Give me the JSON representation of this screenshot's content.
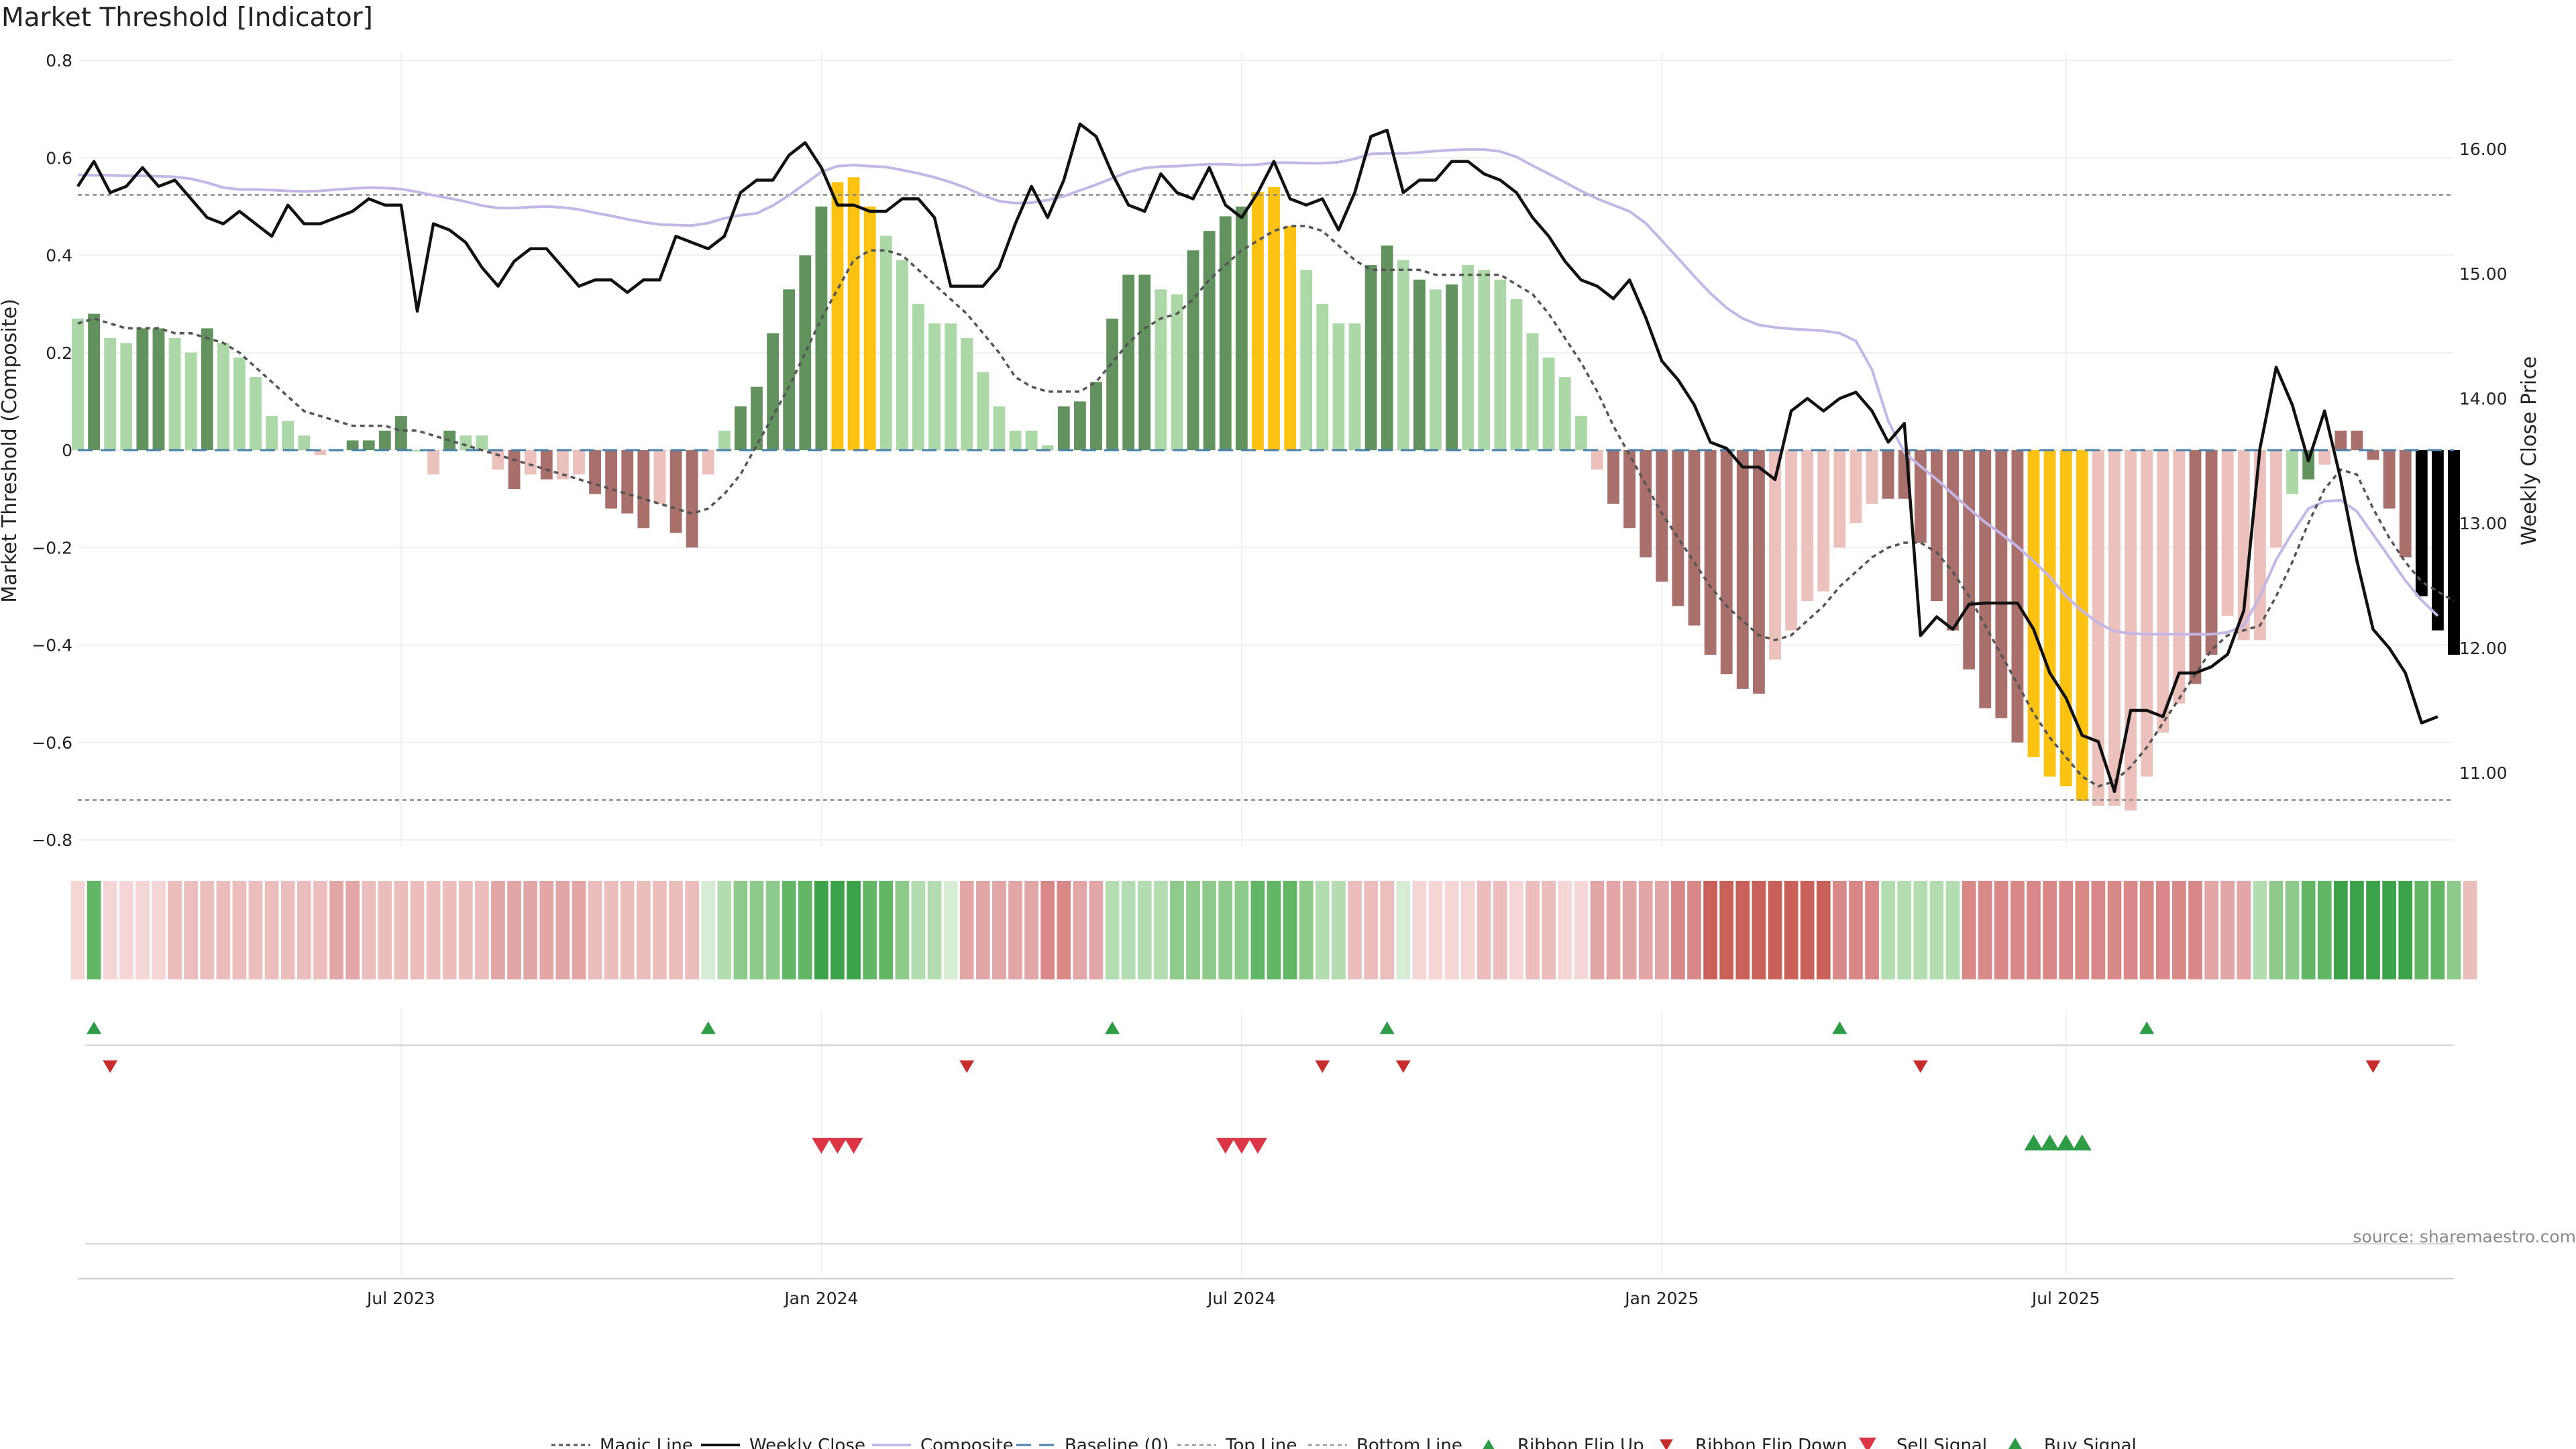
{
  "chart_data": {
    "type": "bar",
    "title": "Market Threshold [Indicator]",
    "ylabel": "Market Threshold (Composite)",
    "y2label": "Weekly Close Price",
    "ylim": [
      -0.8,
      0.8
    ],
    "y2lim": [
      10.5,
      16.5
    ],
    "yticks": [
      "0.8",
      "0.6",
      "0.4",
      "0.2",
      "0",
      "−0.2",
      "−0.4",
      "−0.6",
      "−0.8"
    ],
    "y2ticks": [
      "16.00",
      "15.00",
      "14.00",
      "13.00",
      "12.00",
      "11.00"
    ],
    "xticks": [
      "Jul 2023",
      "Jan 2024",
      "Jul 2024",
      "Jan 2025",
      "Jul 2025"
    ],
    "xtick_weeks": [
      20,
      46,
      72,
      98,
      123
    ],
    "source": "source: sharemaestro.com",
    "top_line": 0.524,
    "bottom_line": -0.718,
    "baseline": 0,
    "composite": [
      0.27,
      0.28,
      0.23,
      0.22,
      0.25,
      0.25,
      0.23,
      0.2,
      0.25,
      0.22,
      0.19,
      0.15,
      0.07,
      0.06,
      0.03,
      -0.01,
      0.0,
      0.02,
      0.02,
      0.04,
      0.07,
      0.0,
      -0.05,
      0.04,
      0.03,
      0.03,
      -0.04,
      -0.08,
      -0.05,
      -0.06,
      -0.06,
      -0.05,
      -0.09,
      -0.12,
      -0.13,
      -0.16,
      -0.11,
      -0.17,
      -0.2,
      -0.05,
      0.04,
      0.09,
      0.13,
      0.24,
      0.33,
      0.4,
      0.5,
      0.55,
      0.56,
      0.5,
      0.44,
      0.39,
      0.3,
      0.26,
      0.26,
      0.23,
      0.16,
      0.09,
      0.04,
      0.04,
      0.01,
      0.09,
      0.1,
      0.14,
      0.27,
      0.36,
      0.36,
      0.33,
      0.32,
      0.41,
      0.45,
      0.48,
      0.5,
      0.53,
      0.54,
      0.46,
      0.37,
      0.3,
      0.26,
      0.26,
      0.38,
      0.42,
      0.39,
      0.35,
      0.33,
      0.34,
      0.38,
      0.37,
      0.35,
      0.31,
      0.24,
      0.19,
      0.15,
      0.07,
      -0.04,
      -0.11,
      -0.16,
      -0.22,
      -0.27,
      -0.32,
      -0.36,
      -0.42,
      -0.46,
      -0.49,
      -0.5,
      -0.43,
      -0.37,
      -0.31,
      -0.29,
      -0.2,
      -0.15,
      -0.11,
      -0.1,
      -0.1,
      -0.19,
      -0.31,
      -0.37,
      -0.45,
      -0.53,
      -0.55,
      -0.6,
      -0.63,
      -0.67,
      -0.69,
      -0.72,
      -0.73,
      -0.73,
      -0.74,
      -0.67,
      -0.58,
      -0.52,
      -0.48,
      -0.42,
      -0.34,
      -0.39,
      -0.39,
      -0.2,
      -0.09,
      -0.06,
      -0.03,
      0.04,
      0.04,
      -0.02,
      -0.12,
      -0.22,
      -0.3,
      -0.37,
      -0.42
    ],
    "bar_colors": [
      "L",
      "G",
      "L",
      "L",
      "G",
      "G",
      "L",
      "L",
      "G",
      "L",
      "L",
      "L",
      "L",
      "L",
      "L",
      "P",
      "L",
      "G",
      "G",
      "G",
      "G",
      "L",
      "P",
      "G",
      "L",
      "L",
      "P",
      "R",
      "P",
      "R",
      "P",
      "P",
      "R",
      "R",
      "R",
      "R",
      "P",
      "R",
      "R",
      "P",
      "L",
      "G",
      "G",
      "G",
      "G",
      "G",
      "G",
      "Y",
      "Y",
      "Y",
      "L",
      "L",
      "L",
      "L",
      "L",
      "L",
      "L",
      "L",
      "L",
      "L",
      "L",
      "G",
      "G",
      "G",
      "G",
      "G",
      "G",
      "L",
      "L",
      "G",
      "G",
      "G",
      "G",
      "Y",
      "Y",
      "Y",
      "L",
      "L",
      "L",
      "L",
      "G",
      "G",
      "L",
      "G",
      "L",
      "G",
      "L",
      "L",
      "L",
      "L",
      "L",
      "L",
      "L",
      "L",
      "P",
      "R",
      "R",
      "R",
      "R",
      "R",
      "R",
      "R",
      "R",
      "R",
      "R",
      "P",
      "P",
      "P",
      "P",
      "P",
      "P",
      "P",
      "R",
      "R",
      "R",
      "R",
      "R",
      "R",
      "R",
      "R",
      "R",
      "Y",
      "Y",
      "Y",
      "Y",
      "P",
      "P",
      "P",
      "P",
      "P",
      "P",
      "R",
      "R",
      "P",
      "P",
      "P",
      "P",
      "L",
      "G",
      "P",
      "R",
      "R",
      "R",
      "R",
      "R"
    ],
    "magic_line": [
      0.26,
      0.27,
      0.26,
      0.25,
      0.25,
      0.25,
      0.24,
      0.24,
      0.23,
      0.22,
      0.2,
      0.17,
      0.14,
      0.11,
      0.08,
      0.07,
      0.06,
      0.05,
      0.05,
      0.05,
      0.04,
      0.04,
      0.03,
      0.02,
      0.01,
      0.0,
      -0.01,
      -0.02,
      -0.03,
      -0.04,
      -0.05,
      -0.06,
      -0.07,
      -0.08,
      -0.09,
      -0.1,
      -0.11,
      -0.12,
      -0.13,
      -0.12,
      -0.09,
      -0.05,
      0.01,
      0.07,
      0.13,
      0.2,
      0.27,
      0.33,
      0.39,
      0.41,
      0.41,
      0.4,
      0.37,
      0.34,
      0.31,
      0.28,
      0.24,
      0.2,
      0.15,
      0.13,
      0.12,
      0.12,
      0.12,
      0.14,
      0.18,
      0.22,
      0.25,
      0.27,
      0.28,
      0.31,
      0.35,
      0.38,
      0.41,
      0.43,
      0.45,
      0.46,
      0.46,
      0.45,
      0.42,
      0.39,
      0.37,
      0.37,
      0.37,
      0.37,
      0.36,
      0.36,
      0.36,
      0.36,
      0.36,
      0.34,
      0.32,
      0.28,
      0.23,
      0.18,
      0.12,
      0.05,
      -0.01,
      -0.07,
      -0.13,
      -0.18,
      -0.23,
      -0.28,
      -0.32,
      -0.35,
      -0.38,
      -0.39,
      -0.38,
      -0.35,
      -0.32,
      -0.28,
      -0.25,
      -0.22,
      -0.2,
      -0.19,
      -0.19,
      -0.21,
      -0.25,
      -0.3,
      -0.36,
      -0.42,
      -0.48,
      -0.54,
      -0.59,
      -0.63,
      -0.67,
      -0.69,
      -0.68,
      -0.65,
      -0.61,
      -0.56,
      -0.51,
      -0.46,
      -0.41,
      -0.38,
      -0.37,
      -0.36,
      -0.3,
      -0.23,
      -0.15,
      -0.08,
      -0.04,
      -0.05,
      -0.12,
      -0.18,
      -0.23,
      -0.27,
      -0.29,
      -0.31
    ],
    "weekly_close": [
      15.7,
      15.9,
      15.65,
      15.7,
      15.85,
      15.7,
      15.75,
      15.6,
      15.45,
      15.4,
      15.5,
      15.4,
      15.3,
      15.55,
      15.4,
      15.4,
      15.45,
      15.5,
      15.6,
      15.55,
      15.55,
      14.7,
      15.4,
      15.35,
      15.25,
      15.05,
      14.9,
      15.1,
      15.2,
      15.2,
      15.05,
      14.9,
      14.95,
      14.95,
      14.85,
      14.95,
      14.95,
      15.3,
      15.25,
      15.2,
      15.3,
      15.65,
      15.75,
      15.75,
      15.95,
      16.05,
      15.85,
      15.55,
      15.55,
      15.5,
      15.5,
      15.6,
      15.6,
      15.45,
      14.9,
      14.9,
      14.9,
      15.05,
      15.4,
      15.7,
      15.45,
      15.75,
      16.2,
      16.1,
      15.8,
      15.55,
      15.5,
      15.8,
      15.65,
      15.6,
      15.85,
      15.55,
      15.45,
      15.65,
      15.9,
      15.6,
      15.55,
      15.6,
      15.35,
      15.65,
      16.1,
      16.15,
      15.65,
      15.75,
      15.75,
      15.9,
      15.9,
      15.8,
      15.75,
      15.65,
      15.45,
      15.3,
      15.1,
      14.95,
      14.9,
      14.8,
      14.95,
      14.65,
      14.3,
      14.15,
      13.95,
      13.65,
      13.6,
      13.45,
      13.45,
      13.35,
      13.9,
      14.0,
      13.9,
      14.0,
      14.05,
      13.9,
      13.65,
      13.8,
      12.1,
      12.25,
      12.15,
      12.35,
      12.36,
      12.36,
      12.36,
      12.15,
      11.8,
      11.6,
      11.3,
      11.25,
      10.85,
      11.5,
      11.5,
      11.45,
      11.8,
      11.8,
      11.85,
      11.95,
      12.3,
      13.6,
      14.25,
      13.95,
      13.5,
      13.9,
      13.35,
      12.7,
      12.15,
      12.0,
      11.8,
      11.4,
      11.45
    ],
    "composite_line": [
      0.565,
      0.564,
      0.564,
      0.563,
      0.563,
      0.562,
      0.561,
      0.557,
      0.549,
      0.539,
      0.535,
      0.535,
      0.534,
      0.532,
      0.531,
      0.532,
      0.535,
      0.537,
      0.539,
      0.538,
      0.536,
      0.53,
      0.523,
      0.517,
      0.51,
      0.502,
      0.497,
      0.497,
      0.499,
      0.5,
      0.498,
      0.494,
      0.487,
      0.481,
      0.474,
      0.468,
      0.463,
      0.462,
      0.461,
      0.466,
      0.476,
      0.482,
      0.486,
      0.502,
      0.523,
      0.547,
      0.571,
      0.583,
      0.585,
      0.583,
      0.581,
      0.575,
      0.568,
      0.56,
      0.55,
      0.538,
      0.523,
      0.511,
      0.507,
      0.508,
      0.513,
      0.521,
      0.533,
      0.545,
      0.558,
      0.571,
      0.579,
      0.582,
      0.583,
      0.585,
      0.587,
      0.587,
      0.585,
      0.586,
      0.59,
      0.59,
      0.589,
      0.589,
      0.591,
      0.598,
      0.608,
      0.609,
      0.609,
      0.611,
      0.614,
      0.616,
      0.617,
      0.617,
      0.613,
      0.602,
      0.584,
      0.567,
      0.55,
      0.532,
      0.516,
      0.503,
      0.49,
      0.466,
      0.43,
      0.394,
      0.357,
      0.322,
      0.292,
      0.27,
      0.257,
      0.252,
      0.249,
      0.247,
      0.245,
      0.24,
      0.224,
      0.165,
      0.06,
      -0.005,
      -0.033,
      -0.06,
      -0.09,
      -0.12,
      -0.148,
      -0.172,
      -0.198,
      -0.228,
      -0.26,
      -0.3,
      -0.33,
      -0.355,
      -0.372,
      -0.376,
      -0.378,
      -0.378,
      -0.378,
      -0.378,
      -0.378,
      -0.374,
      -0.36,
      -0.3,
      -0.225,
      -0.17,
      -0.12,
      -0.105,
      -0.103,
      -0.126,
      -0.173,
      -0.22,
      -0.268,
      -0.308,
      -0.34
    ]
  },
  "legend": {
    "magic_line": "Magic Line",
    "weekly_close": "Weekly Close",
    "composite": "Composite",
    "baseline": "Baseline (0)",
    "top_line": "Top Line",
    "bottom_line": "Bottom Line",
    "ribbon_up": "Ribbon Flip Up",
    "ribbon_down": "Ribbon Flip Down",
    "sell": "Sell Signal",
    "buy": "Buy Signal"
  },
  "ribbon": {
    "shades": [
      "#f5d6d6",
      "#ecbdbd",
      "#e3a6a6",
      "#d98888",
      "#c9605a",
      "#d6ecd4",
      "#b4dcb1",
      "#8ecb8a",
      "#62b666",
      "#3da34a"
    ],
    "values": [
      0,
      8,
      0,
      0,
      0,
      0,
      1,
      1,
      1,
      1,
      1,
      1,
      1,
      1,
      1,
      1,
      2,
      2,
      1,
      1,
      1,
      1,
      1,
      1,
      1,
      1,
      2,
      2,
      2,
      2,
      2,
      2,
      1,
      1,
      1,
      1,
      1,
      1,
      1,
      5,
      6,
      7,
      7,
      7,
      8,
      8,
      9,
      9,
      9,
      8,
      8,
      7,
      6,
      6,
      5,
      2,
      2,
      2,
      2,
      2,
      3,
      3,
      2,
      2,
      6,
      6,
      6,
      6,
      7,
      7,
      7,
      7,
      7,
      8,
      8,
      8,
      7,
      6,
      6,
      1,
      1,
      1,
      5,
      0,
      0,
      0,
      0,
      1,
      1,
      0,
      1,
      1,
      0,
      0,
      2,
      2,
      2,
      2,
      2,
      3,
      3,
      4,
      4,
      4,
      4,
      4,
      4,
      4,
      4,
      3,
      3,
      3,
      6,
      6,
      6,
      6,
      6,
      3,
      3,
      3,
      3,
      3,
      3,
      3,
      3,
      3,
      3,
      3,
      3,
      3,
      3,
      3,
      2,
      2,
      2,
      6,
      7,
      7,
      8,
      8,
      9,
      9,
      9,
      9,
      9,
      8,
      8,
      7,
      1
    ],
    "flip_up_weeks": [
      1,
      39,
      64,
      81,
      109,
      128
    ],
    "flip_down_weeks": [
      2,
      55,
      77,
      82,
      114,
      142
    ],
    "sell_signal_weeks": [
      46,
      47,
      48,
      71,
      72,
      73
    ],
    "buy_signal_weeks": [
      121,
      122,
      123,
      124
    ]
  }
}
